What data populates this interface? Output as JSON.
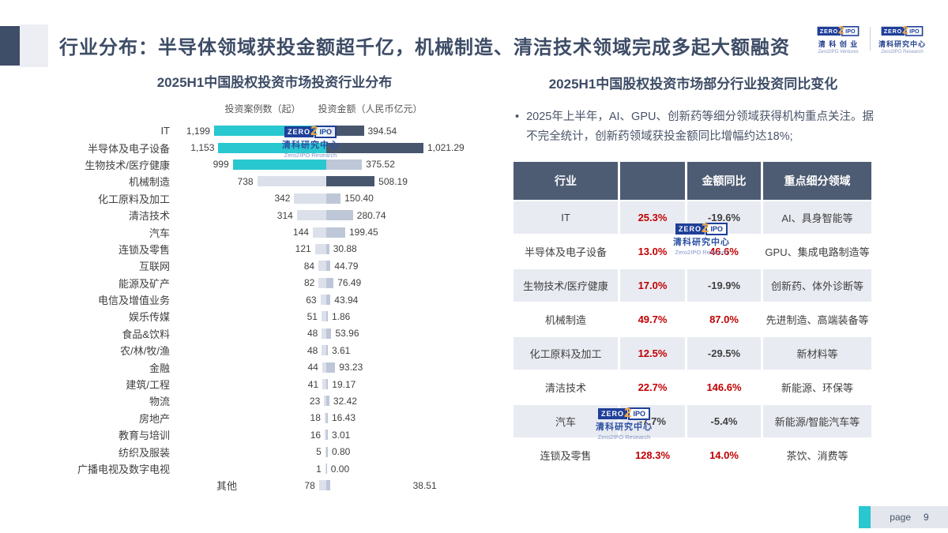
{
  "colors": {
    "teal": "#29C7CF",
    "bar_dark": "#47566C",
    "bar_light": "#DBE0EA",
    "bar_mid": "#BEC7D7",
    "red": "#C00000",
    "neg_text": "#404040",
    "header_bg": "#4E5C73",
    "row_alt": "#E9EBF2",
    "title_text": "#3D4C66"
  },
  "header": {
    "title": "行业分布：半导体领域获投金额超千亿，机械制造、清洁技术领域完成多起大额融资"
  },
  "brands": [
    {
      "zero": "ZERO",
      "two": "2",
      "ipo": "IPO",
      "cn": "清 科 创 业",
      "en": "Zero2IPO Ventures"
    },
    {
      "zero": "ZERO",
      "two": "2",
      "ipo": "IPO",
      "cn": "清科研究中心",
      "en": "Zero2IPO Research"
    }
  ],
  "watermark": {
    "zero": "ZERO",
    "two": "2",
    "ipo": "IPO",
    "cn": "清科研究中心",
    "en": "Zero2IPO Research"
  },
  "left_chart": {
    "title": "2025H1中国股权投资市场投资行业分布",
    "legend_cases": "投资案例数（起）",
    "legend_amount": "投资金额（人民币亿元）"
  },
  "right_panel": {
    "title": "2025H1中国股权投资市场部分行业投资同比变化",
    "bullet": "2025年上半年，AI、GPU、创新药等细分领域获得机构重点关注。据不完全统计，创新药领域获投金额同比增幅约达18%;"
  },
  "footer": {
    "page_label": "page",
    "page_number": "9"
  },
  "chart_data": [
    {
      "type": "bar",
      "orientation": "horizontal",
      "title": "2025H1中国股权投资市场投资行业分布",
      "legend": [
        "投资案例数（起）",
        "投资金额（人民币亿元）"
      ],
      "categories": [
        "IT",
        "半导体及电子设备",
        "生物技术/医疗健康",
        "机械制造",
        "化工原料及加工",
        "清洁技术",
        "汽车",
        "连锁及零售",
        "互联网",
        "能源及矿产",
        "电信及增值业务",
        "娱乐传媒",
        "食品&饮料",
        "农/林/牧/渔",
        "金融",
        "建筑/工程",
        "物流",
        "房地产",
        "教育与培训",
        "纺织及服装",
        "广播电视及数字电视",
        "其他"
      ],
      "series": [
        {
          "name": "投资案例数（起）",
          "values": [
            1199,
            1153,
            999,
            738,
            342,
            314,
            144,
            121,
            84,
            82,
            63,
            51,
            48,
            48,
            44,
            41,
            23,
            18,
            16,
            5,
            1,
            78
          ]
        },
        {
          "name": "投资金额（人民币亿元）",
          "values": [
            394.54,
            1021.29,
            375.52,
            508.19,
            150.4,
            280.74,
            199.45,
            30.88,
            44.79,
            76.49,
            43.94,
            1.86,
            53.96,
            3.61,
            93.23,
            19.17,
            32.42,
            16.43,
            3.01,
            0.8,
            0.0,
            38.51
          ]
        }
      ],
      "case_highlight_rows": [
        0,
        1,
        2
      ],
      "amount_highlight_rows": [
        0,
        1,
        3
      ]
    },
    {
      "type": "table",
      "title": "2025H1中国股权投资市场部分行业投资同比变化",
      "columns": [
        "行业",
        "",
        "金额同比",
        "重点细分领域"
      ],
      "rows": [
        [
          "IT",
          "25.3%",
          "-19.6%",
          "AI、具身智能等"
        ],
        [
          "半导体及电子设备",
          "13.0%",
          "46.6%",
          "GPU、集成电路制造等"
        ],
        [
          "生物技术/医疗健康",
          "17.0%",
          "-19.9%",
          "创新药、体外诊断等"
        ],
        [
          "机械制造",
          "49.7%",
          "87.0%",
          "先进制造、高端装备等"
        ],
        [
          "化工原料及加工",
          "12.5%",
          "-29.5%",
          "新材料等"
        ],
        [
          "清洁技术",
          "22.7%",
          "146.6%",
          "新能源、环保等"
        ],
        [
          "汽车",
          "-7.7%",
          "-5.4%",
          "新能源/智能汽车等"
        ],
        [
          "连锁及零售",
          "128.3%",
          "14.0%",
          "茶饮、消费等"
        ]
      ]
    }
  ]
}
